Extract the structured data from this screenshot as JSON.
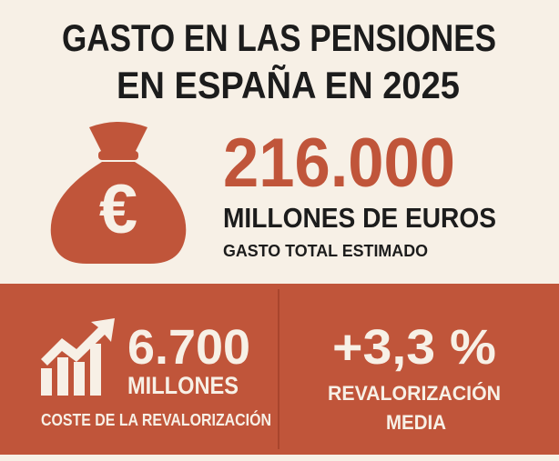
{
  "header": {
    "title_lines": [
      "GASTO EN LAS PENSIONES",
      "EN ESPAÑA EN 2025"
    ]
  },
  "main_stat": {
    "icon_symbol": "€",
    "value": "216.000",
    "unit": "MILLONES DE EUROS",
    "caption": "GASTO TOTAL ESTIMADO"
  },
  "stats": [
    {
      "value": "6.700",
      "unit": "MILLONES",
      "caption": "COSTE DE LA REVALORIZACIÓN"
    },
    {
      "value": "+3,3 %",
      "caption_lines": [
        "REVALORIZACIÓN",
        "MEDIA"
      ]
    }
  ]
}
